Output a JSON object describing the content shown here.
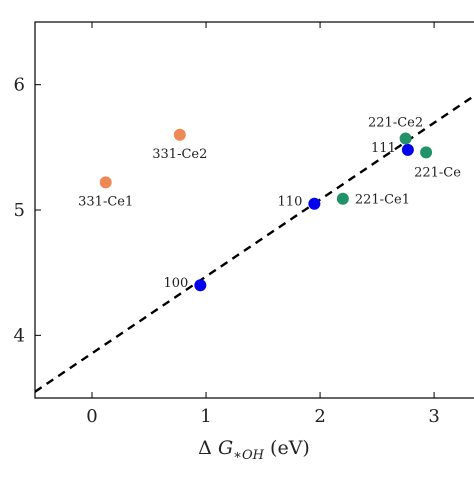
{
  "chart_data": {
    "type": "scatter",
    "xlabel_parts": {
      "prefix": "Δ",
      "symbol": "G",
      "subscript": "∗OH",
      "unit": "(eV)"
    },
    "ylabel": "",
    "xlim": [
      -0.5,
      3.35
    ],
    "ylim": [
      3.5,
      6.5
    ],
    "xticks": [
      0,
      1,
      2,
      3
    ],
    "yticks": [
      4,
      5,
      6
    ],
    "grid": false,
    "legend": "none",
    "colors": {
      "blue": "#0000ee",
      "orange": "#ee8855",
      "green": "#22926a",
      "line": "#000000"
    },
    "points": [
      {
        "label": "100",
        "x": 0.95,
        "y": 4.4,
        "color": "blue",
        "label_pos": "left"
      },
      {
        "label": "110",
        "x": 1.95,
        "y": 5.05,
        "color": "blue",
        "label_pos": "left"
      },
      {
        "label": "111",
        "x": 2.77,
        "y": 5.48,
        "color": "blue",
        "label_pos": "left"
      },
      {
        "label": "331-Ce1",
        "x": 0.12,
        "y": 5.22,
        "color": "orange",
        "label_pos": "below"
      },
      {
        "label": "331-Ce2",
        "x": 0.77,
        "y": 5.6,
        "color": "orange",
        "label_pos": "below"
      },
      {
        "label": "221-Ce1",
        "x": 2.2,
        "y": 5.09,
        "color": "green",
        "label_pos": "right"
      },
      {
        "label": "221-Ce2",
        "x": 2.75,
        "y": 5.57,
        "color": "green",
        "label_pos": "above"
      },
      {
        "label": "221-Ce",
        "x": 2.93,
        "y": 5.46,
        "color": "green",
        "label_pos": "below-right"
      }
    ],
    "fit_line": {
      "style": "dashed",
      "x": [
        -0.5,
        3.35
      ],
      "y": [
        3.55,
        5.91
      ]
    }
  }
}
